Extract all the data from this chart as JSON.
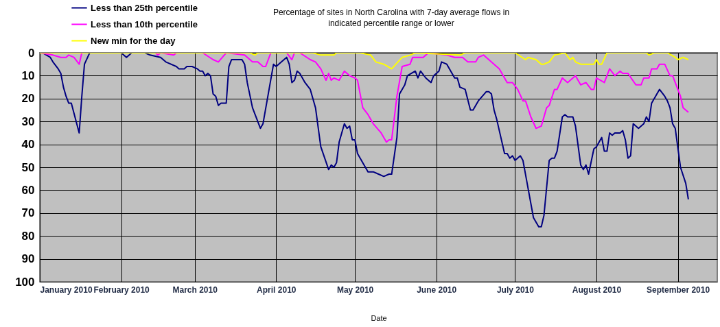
{
  "chart_data": {
    "type": "line",
    "title": "Percentage of sites in North Carolina with 7-day average flows in\nindicated percentile range or lower",
    "xlabel": "Date",
    "xlim": [
      "2010-01-01",
      "2010-09-16"
    ],
    "xticks": [
      {
        "value": "2010-01-01",
        "label": "January 2010"
      },
      {
        "value": "2010-02-01",
        "label": "February 2010"
      },
      {
        "value": "2010-03-01",
        "label": "March 2010"
      },
      {
        "value": "2010-04-01",
        "label": "April 2010"
      },
      {
        "value": "2010-05-01",
        "label": "May 2010"
      },
      {
        "value": "2010-06-01",
        "label": "June 2010"
      },
      {
        "value": "2010-07-01",
        "label": "July 2010"
      },
      {
        "value": "2010-08-01",
        "label": "August 2010"
      },
      {
        "value": "2010-09-01",
        "label": "September 2010"
      }
    ],
    "ylim": [
      100,
      0
    ],
    "yticks": [
      0,
      10,
      20,
      30,
      40,
      50,
      60,
      70,
      80,
      90,
      100
    ],
    "grid": true,
    "legend": "top left",
    "series": [
      {
        "name": "Less than 25th percentile",
        "color": "#000080",
        "x": [
          "2010-01-01",
          "2010-01-02",
          "2010-01-05",
          "2010-01-06",
          "2010-01-08",
          "2010-01-09",
          "2010-01-10",
          "2010-01-11",
          "2010-01-12",
          "2010-01-13",
          "2010-01-16",
          "2010-01-17",
          "2010-01-18",
          "2010-01-20",
          "2010-02-01",
          "2010-02-03",
          "2010-02-05",
          "2010-02-10",
          "2010-02-12",
          "2010-02-16",
          "2010-02-18",
          "2010-02-22",
          "2010-02-23",
          "2010-02-25",
          "2010-02-26",
          "2010-02-28",
          "2010-03-02",
          "2010-03-03",
          "2010-03-04",
          "2010-03-05",
          "2010-03-06",
          "2010-03-07",
          "2010-03-08",
          "2010-03-09",
          "2010-03-10",
          "2010-03-11",
          "2010-03-13",
          "2010-03-14",
          "2010-03-15",
          "2010-03-19",
          "2010-03-20",
          "2010-03-21",
          "2010-03-23",
          "2010-03-24",
          "2010-03-26",
          "2010-03-27",
          "2010-03-29",
          "2010-03-31",
          "2010-04-01",
          "2010-04-03",
          "2010-04-05",
          "2010-04-06",
          "2010-04-07",
          "2010-04-08",
          "2010-04-09",
          "2010-04-10",
          "2010-04-12",
          "2010-04-14",
          "2010-04-16",
          "2010-04-18",
          "2010-04-21",
          "2010-04-22",
          "2010-04-23",
          "2010-04-24",
          "2010-04-25",
          "2010-04-27",
          "2010-04-28",
          "2010-04-29",
          "2010-04-30",
          "2010-05-01",
          "2010-05-02",
          "2010-05-03",
          "2010-05-06",
          "2010-05-08",
          "2010-05-10",
          "2010-05-12",
          "2010-05-14",
          "2010-05-15",
          "2010-05-17",
          "2010-05-18",
          "2010-05-20",
          "2010-05-21",
          "2010-05-24",
          "2010-05-25",
          "2010-05-26",
          "2010-05-28",
          "2010-05-30",
          "2010-05-31",
          "2010-06-02",
          "2010-06-03",
          "2010-06-05",
          "2010-06-08",
          "2010-06-09",
          "2010-06-10",
          "2010-06-12",
          "2010-06-14",
          "2010-06-15",
          "2010-06-17",
          "2010-06-20",
          "2010-06-21",
          "2010-06-22",
          "2010-06-23",
          "2010-06-24",
          "2010-06-27",
          "2010-06-28",
          "2010-06-29",
          "2010-06-30",
          "2010-07-01",
          "2010-07-03",
          "2010-07-04",
          "2010-07-08",
          "2010-07-10",
          "2010-07-11",
          "2010-07-12",
          "2010-07-14",
          "2010-07-15",
          "2010-07-16",
          "2010-07-17",
          "2010-07-19",
          "2010-07-20",
          "2010-07-21",
          "2010-07-23",
          "2010-07-24",
          "2010-07-26",
          "2010-07-27",
          "2010-07-28",
          "2010-07-29",
          "2010-07-31",
          "2010-08-01",
          "2010-08-03",
          "2010-08-04",
          "2010-08-05",
          "2010-08-06",
          "2010-08-07",
          "2010-08-08",
          "2010-08-10",
          "2010-08-11",
          "2010-08-12",
          "2010-08-13",
          "2010-08-14",
          "2010-08-15",
          "2010-08-17",
          "2010-08-19",
          "2010-08-20",
          "2010-08-21",
          "2010-08-22",
          "2010-08-25",
          "2010-08-27",
          "2010-08-28",
          "2010-08-29",
          "2010-08-30",
          "2010-08-31",
          "2010-09-02",
          "2010-09-04",
          "2010-09-05"
        ],
        "values": [
          0,
          0,
          2,
          4,
          7,
          9,
          15,
          19,
          22,
          22,
          35,
          19,
          5,
          0,
          0,
          2,
          0,
          0,
          1,
          2,
          4,
          6,
          7,
          7,
          6,
          6,
          7,
          8,
          8,
          10,
          9,
          10,
          18,
          19,
          23,
          22,
          22,
          6,
          3,
          3,
          5,
          13,
          24,
          27,
          33,
          31,
          18,
          5,
          6,
          4,
          2,
          5,
          13,
          12,
          8,
          9,
          13,
          16,
          24,
          41,
          51,
          49,
          50,
          48,
          39,
          31,
          33,
          32,
          38,
          38,
          44,
          46,
          52,
          52,
          53,
          54,
          53,
          53,
          37,
          18,
          14,
          10,
          8,
          11,
          8,
          11,
          13,
          10,
          8,
          4,
          5,
          11,
          11,
          15,
          16,
          25,
          25,
          21,
          17,
          17,
          18,
          25,
          29,
          44,
          44,
          46,
          45,
          47,
          45,
          47,
          72,
          76,
          76,
          71,
          47,
          46,
          46,
          43,
          28,
          27,
          28,
          28,
          32,
          49,
          51,
          49,
          53,
          42,
          41,
          37,
          43,
          43,
          35,
          36,
          35,
          35,
          34,
          38,
          46,
          45,
          31,
          33,
          31,
          28,
          30,
          22,
          16,
          19,
          21,
          24,
          31,
          33,
          50,
          57,
          64
        ]
      },
      {
        "name": "Less than 10th percentile",
        "color": "#ff00ff",
        "x": [
          "2010-01-01",
          "2010-01-06",
          "2010-01-09",
          "2010-01-11",
          "2010-01-12",
          "2010-01-14",
          "2010-01-16",
          "2010-01-17",
          "2010-02-14",
          "2010-02-15",
          "2010-02-16",
          "2010-02-21",
          "2010-02-22",
          "2010-03-04",
          "2010-03-08",
          "2010-03-10",
          "2010-03-13",
          "2010-03-20",
          "2010-03-23",
          "2010-03-25",
          "2010-03-27",
          "2010-03-28",
          "2010-03-30",
          "2010-04-05",
          "2010-04-07",
          "2010-04-08",
          "2010-04-10",
          "2010-04-14",
          "2010-04-16",
          "2010-04-18",
          "2010-04-20",
          "2010-04-21",
          "2010-04-22",
          "2010-04-23",
          "2010-04-25",
          "2010-04-27",
          "2010-04-29",
          "2010-05-01",
          "2010-05-02",
          "2010-05-04",
          "2010-05-06",
          "2010-05-08",
          "2010-05-11",
          "2010-05-13",
          "2010-05-14",
          "2010-05-15",
          "2010-05-17",
          "2010-05-19",
          "2010-05-22",
          "2010-05-23",
          "2010-05-27",
          "2010-05-29",
          "2010-06-05",
          "2010-06-08",
          "2010-06-11",
          "2010-06-13",
          "2010-06-16",
          "2010-06-17",
          "2010-06-19",
          "2010-06-21",
          "2010-06-25",
          "2010-06-28",
          "2010-06-30",
          "2010-07-02",
          "2010-07-04",
          "2010-07-05",
          "2010-07-07",
          "2010-07-09",
          "2010-07-11",
          "2010-07-13",
          "2010-07-14",
          "2010-07-16",
          "2010-07-17",
          "2010-07-19",
          "2010-07-21",
          "2010-07-24",
          "2010-07-26",
          "2010-07-28",
          "2010-07-30",
          "2010-07-31",
          "2010-08-01",
          "2010-08-04",
          "2010-08-06",
          "2010-08-08",
          "2010-08-10",
          "2010-08-11",
          "2010-08-13",
          "2010-08-16",
          "2010-08-18",
          "2010-08-19",
          "2010-08-21",
          "2010-08-22",
          "2010-08-24",
          "2010-08-25",
          "2010-08-27",
          "2010-08-29",
          "2010-08-30",
          "2010-09-02",
          "2010-09-03",
          "2010-09-05"
        ],
        "values": [
          0,
          1,
          2,
          2,
          1,
          2,
          5,
          0,
          0,
          1,
          0,
          1,
          0,
          0,
          3,
          4,
          0,
          1,
          4,
          4,
          6,
          6,
          0,
          0,
          3,
          0,
          0,
          3,
          4,
          7,
          12,
          9,
          12,
          11,
          12,
          8,
          10,
          11,
          12,
          24,
          27,
          31,
          35,
          39,
          38,
          38,
          19,
          6,
          5,
          2,
          2,
          0,
          1,
          2,
          2,
          4,
          4,
          2,
          1,
          3,
          7,
          13,
          13,
          16,
          21,
          21,
          28,
          33,
          32,
          24,
          23,
          16,
          16,
          11,
          13,
          10,
          14,
          13,
          16,
          16,
          11,
          13,
          7,
          10,
          8,
          9,
          9,
          14,
          14,
          11,
          11,
          7,
          7,
          5,
          5,
          10,
          10,
          19,
          24,
          26
        ]
      },
      {
        "name": "New min for the day",
        "color": "#ffff00",
        "x": [
          "2010-01-01",
          "2010-03-22",
          "2010-03-24",
          "2010-03-25",
          "2010-04-15",
          "2010-04-18",
          "2010-04-23",
          "2010-04-24",
          "2010-05-03",
          "2010-05-07",
          "2010-05-09",
          "2010-05-12",
          "2010-05-15",
          "2010-05-19",
          "2010-05-22",
          "2010-05-24",
          "2010-06-10",
          "2010-06-12",
          "2010-07-01",
          "2010-07-05",
          "2010-07-06",
          "2010-07-09",
          "2010-07-11",
          "2010-07-12",
          "2010-07-14",
          "2010-07-16",
          "2010-07-20",
          "2010-07-22",
          "2010-07-23",
          "2010-07-24",
          "2010-07-26",
          "2010-07-31",
          "2010-08-01",
          "2010-08-02",
          "2010-08-03",
          "2010-08-05",
          "2010-08-20",
          "2010-08-21",
          "2010-08-23",
          "2010-08-28",
          "2010-08-31",
          "2010-09-01",
          "2010-09-03",
          "2010-09-05"
        ],
        "values": [
          0,
          0,
          1,
          0,
          0,
          1,
          1,
          0,
          0,
          1,
          4,
          5,
          7,
          2,
          1,
          0,
          1,
          0,
          0,
          3,
          2,
          3,
          5,
          5,
          4,
          1,
          0,
          3,
          2,
          4,
          5,
          5,
          3,
          5,
          5,
          0,
          0,
          1,
          0,
          0,
          2,
          3,
          2,
          3
        ]
      }
    ]
  }
}
